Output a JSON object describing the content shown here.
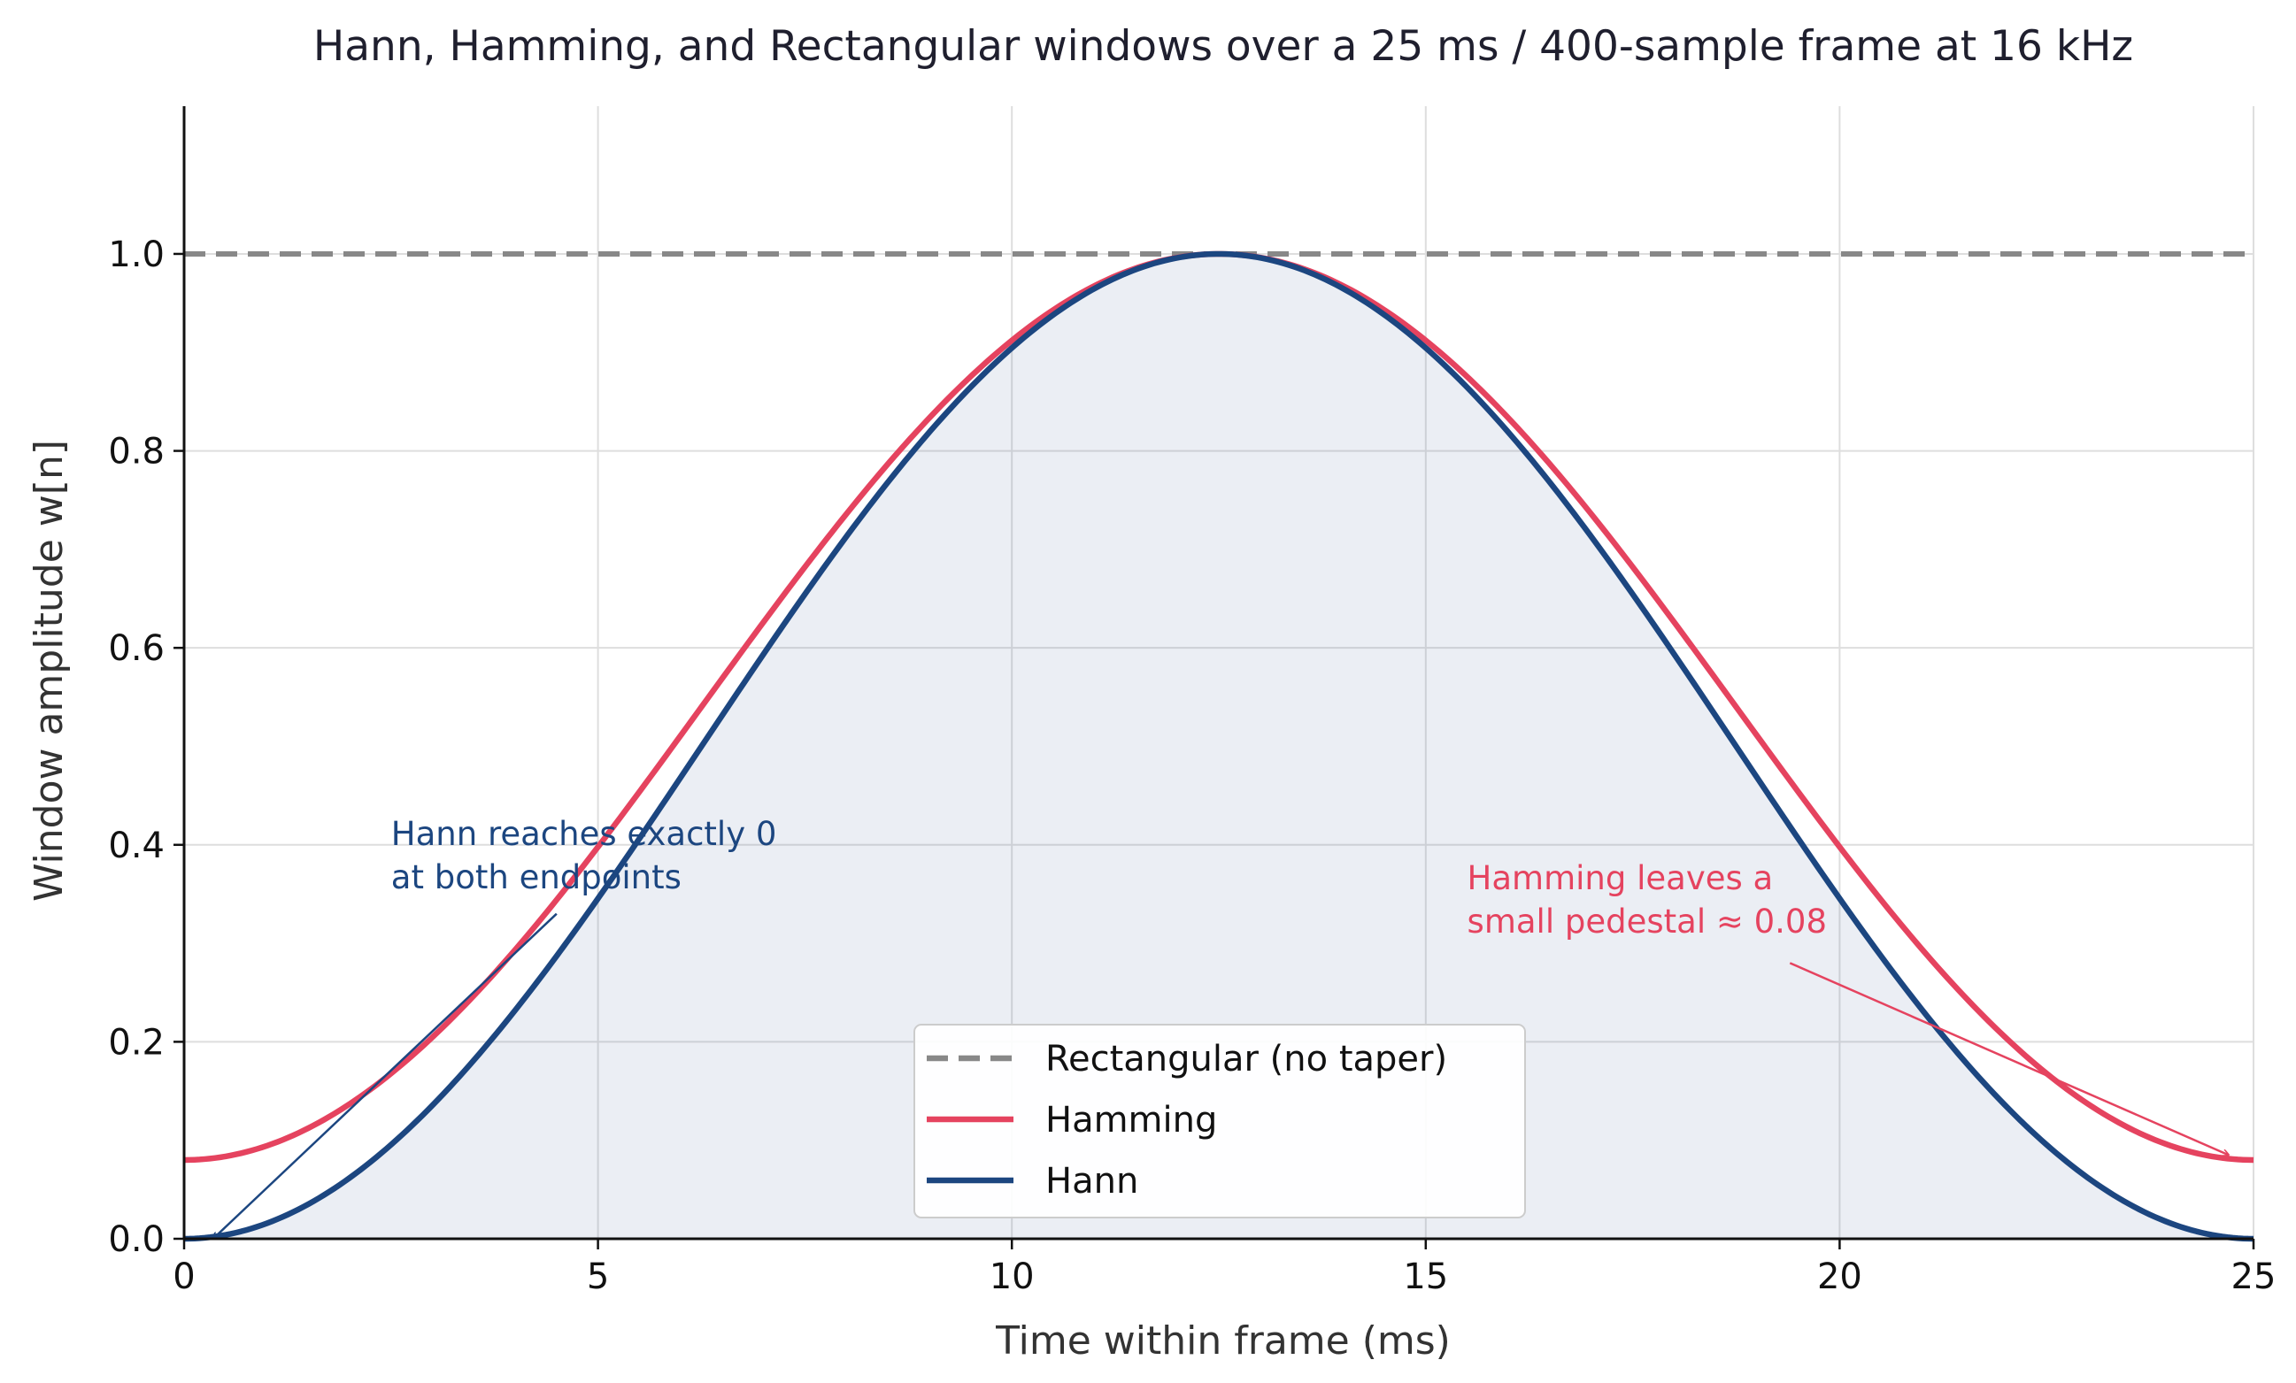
{
  "chart_data": {
    "type": "line",
    "title": "Hann, Hamming, and Rectangular windows over a 25 ms / 400-sample frame at 16 kHz",
    "xlabel": "Time within frame (ms)",
    "ylabel": "Window amplitude w[n]",
    "xlim": [
      0,
      25
    ],
    "ylim": [
      0,
      1.15
    ],
    "xticks": [
      0,
      5,
      10,
      15,
      20,
      25
    ],
    "xtick_labels": [
      "0",
      "5",
      "10",
      "15",
      "20",
      "25"
    ],
    "yticks": [
      0.0,
      0.2,
      0.4,
      0.6,
      0.8,
      1.0
    ],
    "ytick_labels": [
      "0.0",
      "0.2",
      "0.4",
      "0.6",
      "0.8",
      "1.0"
    ],
    "grid": true,
    "legend_position": "bottom-center",
    "frame_samples": 400,
    "frame_ms": 25,
    "series": [
      {
        "name": "Rectangular (no taper)",
        "kind": "rectangular",
        "color": "#888888",
        "style": "dashed",
        "value": 1.0
      },
      {
        "name": "Hamming",
        "kind": "hamming",
        "color": "#e5435f",
        "style": "solid",
        "alpha": 0.54,
        "beta": 0.46
      },
      {
        "name": "Hann",
        "kind": "hann",
        "color": "#1c4680",
        "style": "solid",
        "alpha": 0.5,
        "beta": 0.5,
        "filled": true,
        "fill_color": "#1c4680"
      }
    ],
    "annotations": [
      {
        "lines": [
          "Hann reaches exactly 0",
          "at both endpoints"
        ],
        "color": "#1c4680",
        "text_at": [
          2.5,
          0.4
        ],
        "arrow_from": [
          4.5,
          0.33
        ],
        "arrow_to": [
          0.35,
          0.0
        ]
      },
      {
        "lines": [
          "Hamming leaves a",
          "small pedestal ≈ 0.08"
        ],
        "color": "#e5435f",
        "text_at": [
          15.5,
          0.355
        ],
        "arrow_from": [
          19.4,
          0.28
        ],
        "arrow_to": [
          24.7,
          0.085
        ]
      }
    ]
  }
}
